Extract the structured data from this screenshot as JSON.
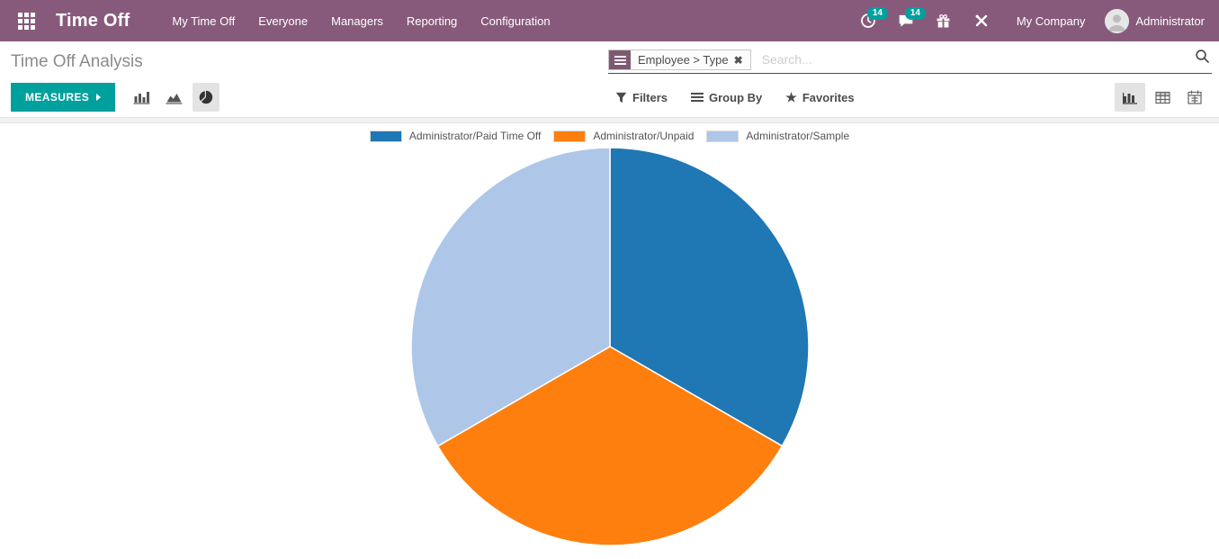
{
  "navbar": {
    "brand": "Time Off",
    "items": [
      "My Time Off",
      "Everyone",
      "Managers",
      "Reporting",
      "Configuration"
    ],
    "activity_badge": "14",
    "message_badge": "14",
    "company": "My Company",
    "user": "Administrator",
    "bg_color": "#875A7B",
    "accent_color": "#00A09D"
  },
  "control_panel": {
    "breadcrumb": "Time Off Analysis",
    "measures_label": "MEASURES",
    "search": {
      "facet_value": "Employee > Type",
      "facet_remove": "✖",
      "placeholder": "Search..."
    },
    "filters_label": "Filters",
    "group_by_label": "Group By",
    "favorites_label": "Favorites",
    "star_glyph": "★"
  },
  "chart_data": {
    "type": "pie",
    "title": "",
    "legend_position": "top",
    "start_angle_deg": 0,
    "slices": [
      {
        "label": "Administrator/Paid Time Off",
        "color": "#1f77b4",
        "percent": 33.33
      },
      {
        "label": "Administrator/Unpaid",
        "color": "#ff7f0e",
        "percent": 33.33
      },
      {
        "label": "Administrator/Sample",
        "color": "#aec7e8",
        "percent": 33.34
      }
    ]
  }
}
